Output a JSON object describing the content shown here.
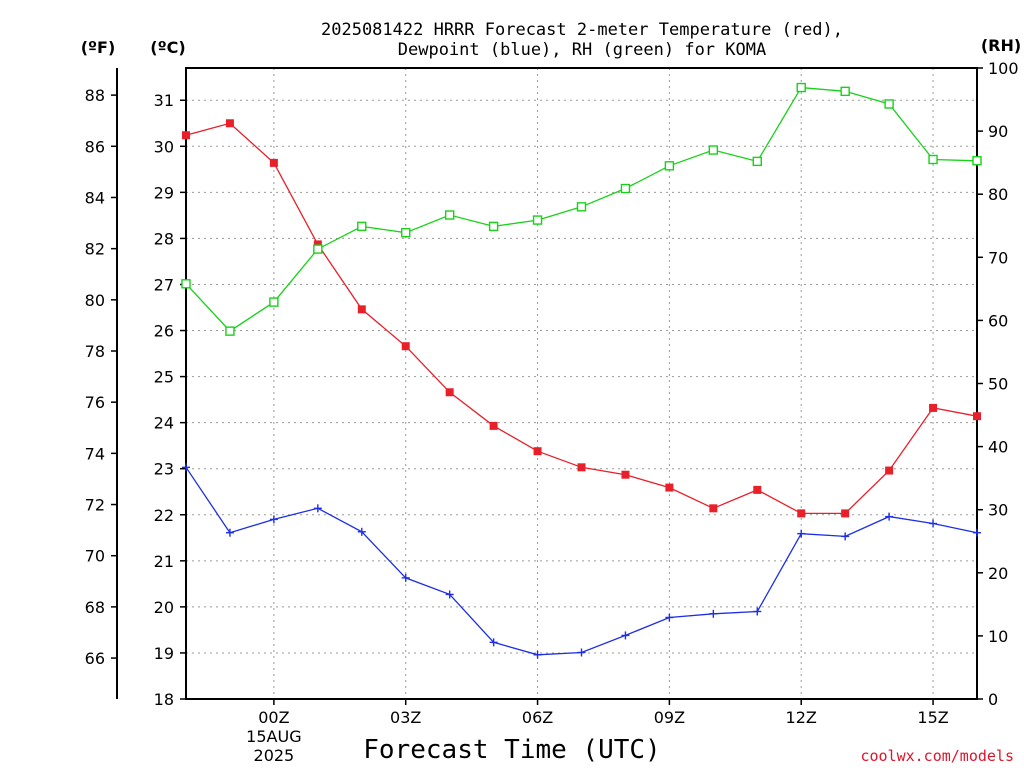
{
  "chart_data": {
    "type": "line",
    "title_lines": [
      "2025081422 HRRR Forecast 2-meter Temperature (red),",
      "Dewpoint (blue), RH (green) for KOMA"
    ],
    "xlabel": "Forecast Time (UTC)",
    "unit_labels": {
      "f": "(ºF)",
      "c": "(ºC)",
      "rh": "(RH)"
    },
    "x_range_hours": [
      22,
      40
    ],
    "x_tick_labels": [
      {
        "label": "00Z",
        "hour": 24,
        "extra": [
          "15AUG",
          "2025"
        ]
      },
      {
        "label": "03Z",
        "hour": 27
      },
      {
        "label": "06Z",
        "hour": 30
      },
      {
        "label": "09Z",
        "hour": 33
      },
      {
        "label": "12Z",
        "hour": 36
      },
      {
        "label": "15Z",
        "hour": 39
      }
    ],
    "x_hours": [
      22,
      23,
      24,
      25,
      26,
      27,
      28,
      29,
      30,
      31,
      32,
      33,
      34,
      35,
      36,
      37,
      38,
      39,
      40
    ],
    "temp_c_axis": {
      "range": [
        18,
        31.7
      ],
      "ticks": [
        18,
        19,
        20,
        21,
        22,
        23,
        24,
        25,
        26,
        27,
        28,
        29,
        30,
        31
      ]
    },
    "temp_f_axis": {
      "ticks": [
        66,
        68,
        70,
        72,
        74,
        76,
        78,
        80,
        82,
        84,
        86,
        88
      ]
    },
    "rh_axis": {
      "range": [
        0,
        100
      ],
      "ticks": [
        0,
        10,
        20,
        30,
        40,
        50,
        60,
        70,
        80,
        90,
        100
      ]
    },
    "series": [
      {
        "name": "Temperature",
        "axis": "celsius",
        "color": "#e8202a",
        "marker": "filled-square",
        "values": [
          30.24,
          30.5,
          29.64,
          27.87,
          26.46,
          25.66,
          24.66,
          23.93,
          23.38,
          23.03,
          22.87,
          22.59,
          22.14,
          22.54,
          22.03,
          22.03,
          22.96,
          24.32,
          24.14
        ]
      },
      {
        "name": "Dewpoint",
        "axis": "celsius",
        "color": "#1e2ee6",
        "marker": "plus",
        "values": [
          23.03,
          21.61,
          21.9,
          22.14,
          21.63,
          20.63,
          20.27,
          19.23,
          18.96,
          19.01,
          19.38,
          19.77,
          19.85,
          19.9,
          21.59,
          21.53,
          21.96,
          21.81,
          21.61
        ]
      },
      {
        "name": "RH",
        "axis": "rh",
        "color": "#17d217",
        "marker": "open-square",
        "values": [
          65.8,
          58.3,
          62.9,
          71.3,
          74.9,
          73.9,
          76.7,
          74.9,
          75.9,
          78.0,
          80.9,
          84.5,
          87.0,
          85.2,
          96.9,
          96.3,
          94.3,
          85.5,
          85.3
        ]
      }
    ],
    "grid": true
  },
  "credit": "coolwx.com/models"
}
